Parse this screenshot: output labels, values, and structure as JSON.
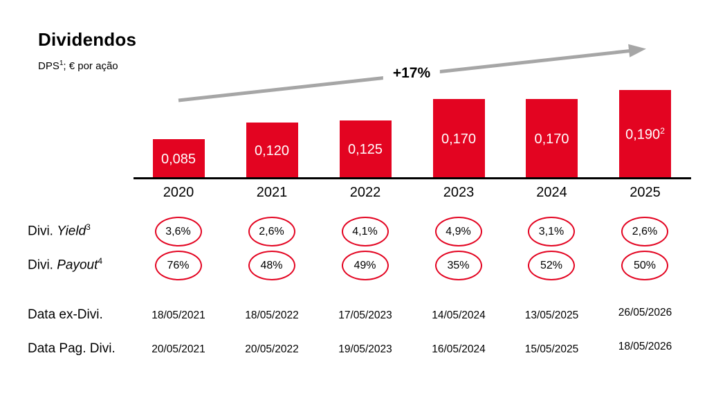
{
  "header": {
    "title": "Dividendos",
    "subtitle": {
      "prefix": "DPS",
      "sup": "1",
      "suffix": "; € por ação"
    }
  },
  "chart_data": {
    "type": "bar",
    "title": "Dividendos",
    "subtitle": "DPS¹; € por ação",
    "growth_annotation": "+17%",
    "categories": [
      "2020",
      "2021",
      "2022",
      "2023",
      "2024",
      "2025"
    ],
    "values": [
      0.085,
      0.12,
      0.125,
      0.17,
      0.17,
      0.19
    ],
    "bar_labels": [
      {
        "text": "0,085",
        "sup": ""
      },
      {
        "text": "0,120",
        "sup": ""
      },
      {
        "text": "0,125",
        "sup": ""
      },
      {
        "text": "0,170",
        "sup": ""
      },
      {
        "text": "0,170",
        "sup": ""
      },
      {
        "text": "0,190",
        "sup": "2"
      }
    ],
    "ylim": [
      0,
      0.19
    ],
    "xlabel": "",
    "ylabel": "",
    "grid": false,
    "legend": false,
    "rows": [
      {
        "id": "yield",
        "style": "ellipse",
        "label": {
          "prefix": "Divi. ",
          "italic": "Yield",
          "sup": "3"
        },
        "values": [
          "3,6%",
          "2,6%",
          "4,1%",
          "4,9%",
          "3,1%",
          "2,6%"
        ]
      },
      {
        "id": "payout",
        "style": "ellipse",
        "label": {
          "prefix": "Divi. ",
          "italic": "Payout",
          "sup": "4"
        },
        "values": [
          "76%",
          "48%",
          "49%",
          "35%",
          "52%",
          "50%"
        ]
      },
      {
        "id": "ex_dividend_date",
        "style": "text",
        "label": {
          "prefix": "Data ex-Divi.",
          "italic": "",
          "sup": ""
        },
        "values": [
          "18/05/2021",
          "18/05/2022",
          "17/05/2023",
          "14/05/2024",
          "13/05/2025",
          "26/05/2026"
        ]
      },
      {
        "id": "payment_date",
        "style": "text",
        "label": {
          "prefix": "Data Pag. Divi.",
          "italic": "",
          "sup": ""
        },
        "values": [
          "20/05/2021",
          "20/05/2022",
          "19/05/2023",
          "16/05/2024",
          "15/05/2025",
          "18/05/2026"
        ]
      }
    ],
    "colors": {
      "bar": "#e30421",
      "bar_label": "#ffffff",
      "ellipse_border": "#e30421",
      "arrow": "#a6a6a6",
      "axis": "#000000",
      "text": "#000000"
    }
  }
}
